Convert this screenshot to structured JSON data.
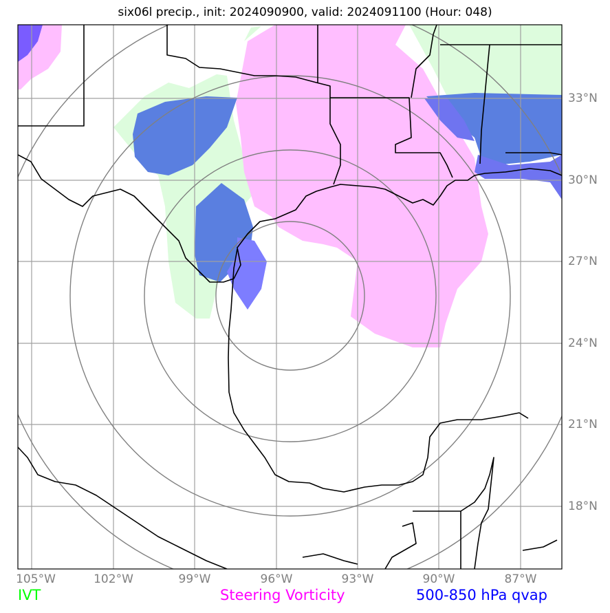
{
  "title": "six06l precip., init: 2024090900, valid: 2024091100 (Hour: 048)",
  "lat_labels": [
    "33°N",
    "30°N",
    "27°N",
    "24°N",
    "21°N",
    "18°N"
  ],
  "lon_labels": [
    "105°W",
    "102°W",
    "99°W",
    "96°W",
    "93°W",
    "90°W",
    "87°W"
  ],
  "legend": {
    "ivt": {
      "label": "IVT",
      "color": "#00ff00"
    },
    "vorticity": {
      "label": "Steering Vorticity",
      "color": "#ff00ff"
    },
    "qvap": {
      "label": "500-850 hPa qvap",
      "color": "#0000ff"
    }
  },
  "colors": {
    "ivt_fill": "#ddfcdd",
    "vort_fill": "#ffbeff",
    "qvap_fill": "#5a7fe0",
    "qvap_strong": "#7d7dff",
    "grid": "#a0a0a0",
    "range_rings": "#808080",
    "coast": "#000000"
  }
}
